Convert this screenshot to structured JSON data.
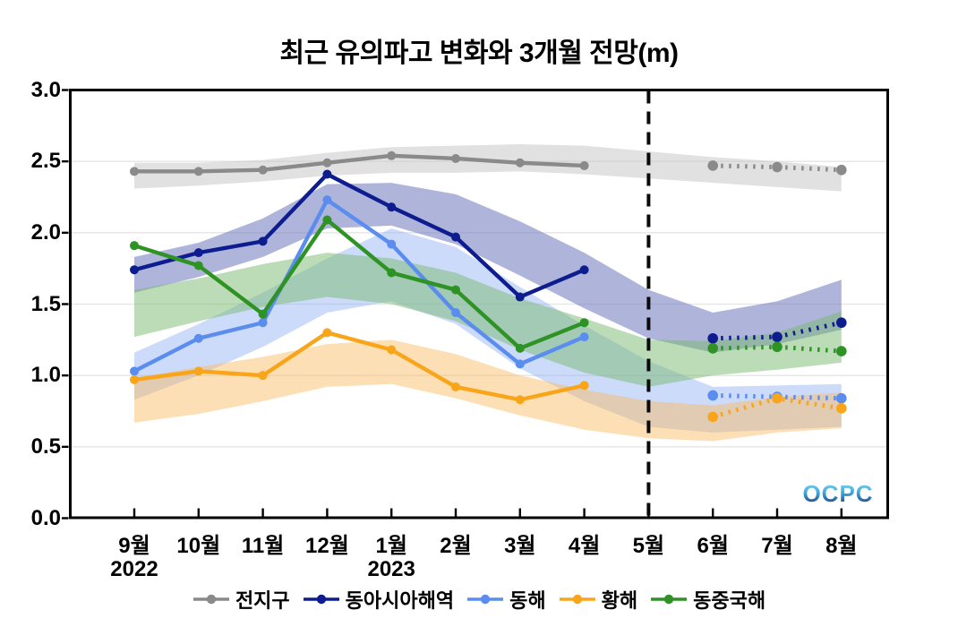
{
  "title": "최근 유의파고 변화와 3개월 전망(m)",
  "logo": {
    "text": "OCPC"
  },
  "chart_data": {
    "type": "line",
    "title": "최근 유의파고 변화와 3개월 전망(m)",
    "unit": "m",
    "ylim": [
      0.0,
      3.0
    ],
    "yticks": [
      0.0,
      0.5,
      1.0,
      1.5,
      2.0,
      2.5,
      3.0
    ],
    "x_labels": [
      "9월",
      "10월",
      "11월",
      "12월",
      "1월",
      "2월",
      "3월",
      "4월",
      "5월",
      "6월",
      "7월",
      "8월"
    ],
    "year_labels": [
      {
        "text": "2022",
        "month_index": 0
      },
      {
        "text": "2023",
        "month_index": 4
      }
    ],
    "forecast_divider_index": 8,
    "forecast_start_index": 9,
    "grid": "horizontal-only",
    "legend_position": "bottom",
    "series": [
      {
        "name": "전지구",
        "id": "global",
        "color": "#8a8a8a",
        "band_color": "rgba(200,200,200,0.55)",
        "observed": [
          2.43,
          2.43,
          2.44,
          2.49,
          2.54,
          2.52,
          2.49,
          2.47
        ],
        "forecast": [
          2.47,
          2.46,
          2.44
        ],
        "band_upper": [
          2.49,
          2.49,
          2.51,
          2.56,
          2.6,
          2.61,
          2.62,
          2.61,
          2.57,
          2.53,
          2.5,
          2.46
        ],
        "band_lower": [
          2.31,
          2.33,
          2.36,
          2.4,
          2.42,
          2.42,
          2.43,
          2.41,
          2.38,
          2.35,
          2.32,
          2.29
        ]
      },
      {
        "name": "동아시아해역",
        "id": "east-asia",
        "color": "#0d1c8f",
        "band_color": "rgba(110,118,190,0.55)",
        "observed": [
          1.74,
          1.86,
          1.94,
          2.41,
          2.18,
          1.97,
          1.55,
          1.74
        ],
        "forecast": [
          1.26,
          1.27,
          1.37
        ],
        "band_upper": [
          1.83,
          1.93,
          2.1,
          2.34,
          2.35,
          2.27,
          2.08,
          1.86,
          1.6,
          1.44,
          1.52,
          1.67
        ],
        "band_lower": [
          1.58,
          1.69,
          1.83,
          2.03,
          2.05,
          1.92,
          1.7,
          1.47,
          1.26,
          1.16,
          1.22,
          1.32
        ]
      },
      {
        "name": "동해",
        "id": "east-sea",
        "color": "#5b8def",
        "band_color": "rgba(145,175,245,0.45)",
        "observed": [
          1.03,
          1.26,
          1.37,
          2.23,
          1.92,
          1.44,
          1.08,
          1.27
        ],
        "forecast": [
          0.86,
          0.85,
          0.84
        ],
        "band_upper": [
          1.16,
          1.36,
          1.58,
          1.82,
          2.03,
          1.9,
          1.62,
          1.35,
          1.1,
          0.92,
          0.93,
          0.94
        ],
        "band_lower": [
          0.83,
          1.0,
          1.2,
          1.44,
          1.52,
          1.36,
          1.05,
          0.82,
          0.64,
          0.6,
          0.62,
          0.64
        ]
      },
      {
        "name": "황해",
        "id": "yellow-sea",
        "color": "#f9a51a",
        "band_color": "rgba(250,185,90,0.45)",
        "observed": [
          0.97,
          1.03,
          1.0,
          1.3,
          1.18,
          0.92,
          0.83,
          0.93
        ],
        "forecast": [
          0.71,
          0.84,
          0.77
        ],
        "band_upper": [
          0.98,
          1.06,
          1.13,
          1.22,
          1.25,
          1.15,
          1.0,
          0.9,
          0.82,
          0.79,
          0.85,
          0.88
        ],
        "band_lower": [
          0.67,
          0.73,
          0.82,
          0.92,
          0.94,
          0.84,
          0.72,
          0.62,
          0.56,
          0.54,
          0.6,
          0.63
        ]
      },
      {
        "name": "동중국해",
        "id": "east-china-sea",
        "color": "#2e9225",
        "band_color": "rgba(120,185,110,0.50)",
        "observed": [
          1.91,
          1.77,
          1.43,
          2.09,
          1.72,
          1.6,
          1.19,
          1.37
        ],
        "forecast": [
          1.19,
          1.2,
          1.17
        ],
        "band_upper": [
          1.6,
          1.68,
          1.78,
          1.86,
          1.82,
          1.72,
          1.54,
          1.4,
          1.25,
          1.24,
          1.3,
          1.45
        ],
        "band_lower": [
          1.27,
          1.38,
          1.48,
          1.55,
          1.5,
          1.38,
          1.18,
          1.02,
          0.92,
          1.0,
          1.04,
          1.09
        ]
      }
    ]
  }
}
